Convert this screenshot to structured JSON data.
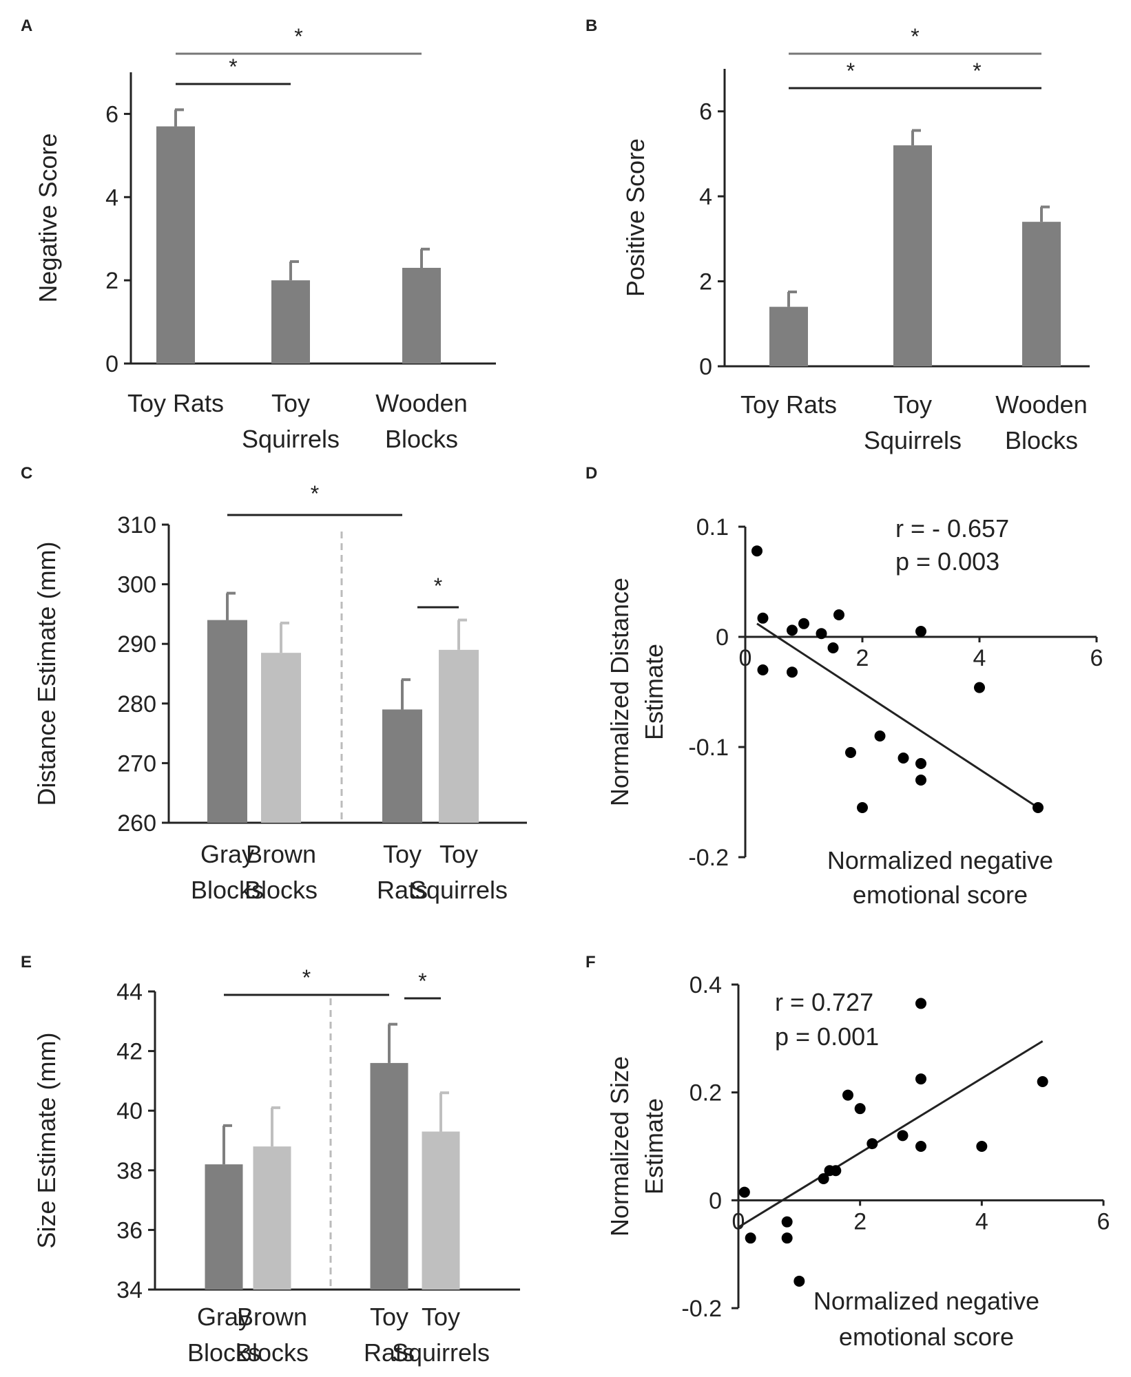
{
  "figure": {
    "colors": {
      "bar_dark": "#7f7f7f",
      "bar_light": "#bfbfbf",
      "axis": "#222222",
      "sig_line": "#222222",
      "sig_line_light": "#777777",
      "dashed": "#bbbbbb",
      "dot": "#000000"
    }
  },
  "chart_data": [
    {
      "panel": "A",
      "type": "bar",
      "ylabel": "Negative Score",
      "ylim": [
        0,
        7
      ],
      "yticks": [
        0,
        2,
        4,
        6
      ],
      "categories": [
        [
          "Toy Rats"
        ],
        [
          "Toy",
          "Squirrels"
        ],
        [
          "Wooden",
          "Blocks"
        ]
      ],
      "values": [
        5.7,
        2.0,
        2.3
      ],
      "errors": [
        0.4,
        0.45,
        0.45
      ],
      "bar_colors": [
        "dark",
        "dark",
        "dark"
      ],
      "significance": [
        {
          "from": 0,
          "to": 1,
          "label": "*",
          "level": 0,
          "style": "dark"
        },
        {
          "from": 0,
          "to": 2,
          "label": "*",
          "level": 1,
          "style": "light"
        }
      ]
    },
    {
      "panel": "B",
      "type": "bar",
      "ylabel": "Positive Score",
      "ylim": [
        0,
        7
      ],
      "yticks": [
        0,
        2,
        4,
        6
      ],
      "categories": [
        [
          "Toy Rats"
        ],
        [
          "Toy",
          "Squirrels"
        ],
        [
          "Wooden",
          "Blocks"
        ]
      ],
      "values": [
        1.4,
        5.2,
        3.4
      ],
      "errors": [
        0.35,
        0.35,
        0.35
      ],
      "bar_colors": [
        "dark",
        "dark",
        "dark"
      ],
      "significance": [
        {
          "from": 0,
          "to": 1,
          "label": "*",
          "level": 0,
          "style": "dark"
        },
        {
          "from": 1,
          "to": 2,
          "label": "*",
          "level": 0,
          "style": "dark"
        },
        {
          "from": 0,
          "to": 2,
          "label": "*",
          "level": 1,
          "style": "light"
        }
      ]
    },
    {
      "panel": "C",
      "type": "bar",
      "ylabel": "Distance Estimate (mm)",
      "ylim": [
        260,
        310
      ],
      "yticks": [
        260,
        270,
        280,
        290,
        300,
        310
      ],
      "categories": [
        [
          "Gray",
          "Blocks"
        ],
        [
          "Brown",
          "Blocks"
        ],
        [
          "Toy",
          "Rats"
        ],
        [
          "Toy",
          "Squirrels"
        ]
      ],
      "values": [
        294,
        288.5,
        279,
        289
      ],
      "errors": [
        4.5,
        5,
        5,
        5
      ],
      "bar_colors": [
        "dark",
        "light",
        "dark",
        "light"
      ],
      "divider_after": 1,
      "significance": [
        {
          "from": 2,
          "to": 3,
          "label": "*",
          "level": 0,
          "style": "dark",
          "short": true
        },
        {
          "from": 0,
          "to": 2,
          "label": "*",
          "level": 1,
          "style": "dark"
        }
      ]
    },
    {
      "panel": "D",
      "type": "scatter",
      "ylabel_lines": [
        "Normalized  Distance",
        "Estimate"
      ],
      "xlabel_lines": [
        "Normalized negative",
        "emotional score"
      ],
      "xlim": [
        0,
        6
      ],
      "ylim": [
        -0.2,
        0.1
      ],
      "xticks": [
        0,
        2,
        4,
        6
      ],
      "yticks": [
        -0.2,
        -0.1,
        0,
        0.1
      ],
      "ytick_labels": [
        "-0.2",
        "-0.1",
        "0",
        "0.1"
      ],
      "annotation": [
        "r = - 0.657",
        "p = 0.003"
      ],
      "points": [
        [
          0.2,
          0.078
        ],
        [
          0.3,
          0.017
        ],
        [
          0.3,
          -0.03
        ],
        [
          0.8,
          0.006
        ],
        [
          0.8,
          -0.032
        ],
        [
          1.0,
          0.012
        ],
        [
          1.3,
          0.003
        ],
        [
          1.5,
          -0.01
        ],
        [
          1.6,
          0.02
        ],
        [
          1.8,
          -0.105
        ],
        [
          2.0,
          -0.155
        ],
        [
          2.3,
          -0.09
        ],
        [
          2.7,
          -0.11
        ],
        [
          3.0,
          0.005
        ],
        [
          3.0,
          -0.115
        ],
        [
          3.0,
          -0.13
        ],
        [
          4.0,
          -0.046
        ],
        [
          5.0,
          -0.155
        ]
      ],
      "fit": {
        "x": [
          0.2,
          5.0
        ],
        "y": [
          0.012,
          -0.155
        ]
      }
    },
    {
      "panel": "E",
      "type": "bar",
      "ylabel": "Size Estimate (mm)",
      "ylim": [
        34,
        44
      ],
      "yticks": [
        34,
        36,
        38,
        40,
        42,
        44
      ],
      "categories": [
        [
          "Gray",
          "Blocks"
        ],
        [
          "Brown",
          "Blocks"
        ],
        [
          "Toy",
          "Rats"
        ],
        [
          "Toy",
          "Squirrels"
        ]
      ],
      "values": [
        38.2,
        38.8,
        41.6,
        39.3
      ],
      "errors": [
        1.3,
        1.3,
        1.3,
        1.3
      ],
      "bar_colors": [
        "dark",
        "light",
        "dark",
        "light"
      ],
      "divider_after": 1,
      "significance": [
        {
          "from": 2,
          "to": 3,
          "label": "*",
          "level": 0,
          "style": "dark",
          "short": true
        },
        {
          "from": 0,
          "to": 2,
          "label": "*",
          "level": 1,
          "style": "dark"
        }
      ]
    },
    {
      "panel": "F",
      "type": "scatter",
      "ylabel_lines": [
        "Normalized Size",
        "Estimate"
      ],
      "xlabel_lines": [
        "Normalized negative",
        "emotional score"
      ],
      "xlim": [
        0,
        6
      ],
      "ylim": [
        -0.2,
        0.4
      ],
      "xticks": [
        0,
        2,
        4,
        6
      ],
      "yticks": [
        -0.2,
        0,
        0.2,
        0.4
      ],
      "ytick_labels": [
        "-0.2",
        "0",
        "0.2",
        "0.4"
      ],
      "annotation": [
        "r = 0.727",
        "p = 0.001"
      ],
      "points": [
        [
          0.1,
          0.015
        ],
        [
          0.2,
          -0.07
        ],
        [
          0.8,
          -0.04
        ],
        [
          0.8,
          -0.07
        ],
        [
          1.0,
          -0.15
        ],
        [
          1.4,
          0.04
        ],
        [
          1.5,
          0.055
        ],
        [
          1.6,
          0.055
        ],
        [
          1.8,
          0.195
        ],
        [
          2.0,
          0.17
        ],
        [
          2.2,
          0.105
        ],
        [
          2.7,
          0.12
        ],
        [
          3.0,
          0.365
        ],
        [
          3.0,
          0.225
        ],
        [
          3.0,
          0.1
        ],
        [
          4.0,
          0.1
        ],
        [
          5.0,
          0.22
        ]
      ],
      "fit": {
        "x": [
          0.0,
          5.0
        ],
        "y": [
          -0.05,
          0.295
        ]
      }
    }
  ]
}
